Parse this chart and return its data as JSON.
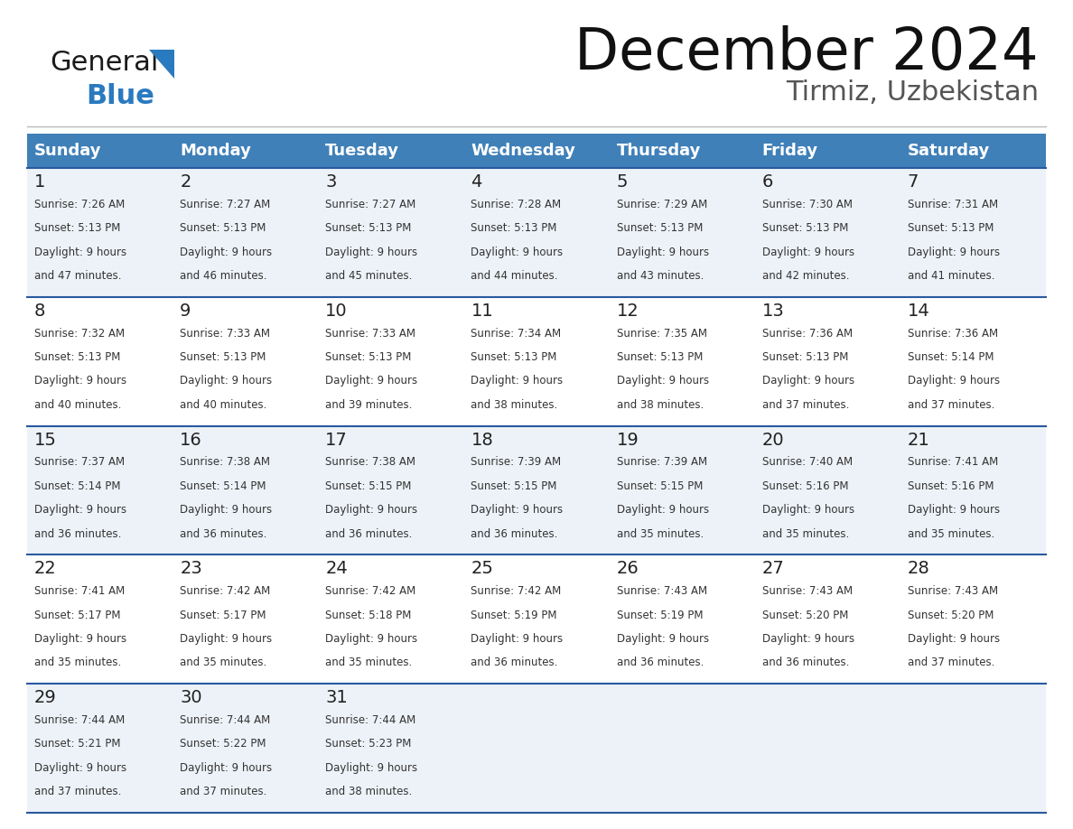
{
  "title": "December 2024",
  "subtitle": "Tirmiz, Uzbekistan",
  "header_bg": "#4080b8",
  "header_text": "#ffffff",
  "weekdays": [
    "Sunday",
    "Monday",
    "Tuesday",
    "Wednesday",
    "Thursday",
    "Friday",
    "Saturday"
  ],
  "row_bg_odd": "#edf2f8",
  "row_bg_even": "#ffffff",
  "cell_border": "#2a5a9f",
  "day_color": "#222222",
  "info_color": "#333333",
  "background": "#ffffff",
  "calendar": [
    [
      {
        "day": "1",
        "sunrise": "7:26 AM",
        "sunset": "5:13 PM",
        "daylight_h": "9 hours",
        "daylight_m": "and 47 minutes."
      },
      {
        "day": "2",
        "sunrise": "7:27 AM",
        "sunset": "5:13 PM",
        "daylight_h": "9 hours",
        "daylight_m": "and 46 minutes."
      },
      {
        "day": "3",
        "sunrise": "7:27 AM",
        "sunset": "5:13 PM",
        "daylight_h": "9 hours",
        "daylight_m": "and 45 minutes."
      },
      {
        "day": "4",
        "sunrise": "7:28 AM",
        "sunset": "5:13 PM",
        "daylight_h": "9 hours",
        "daylight_m": "and 44 minutes."
      },
      {
        "day": "5",
        "sunrise": "7:29 AM",
        "sunset": "5:13 PM",
        "daylight_h": "9 hours",
        "daylight_m": "and 43 minutes."
      },
      {
        "day": "6",
        "sunrise": "7:30 AM",
        "sunset": "5:13 PM",
        "daylight_h": "9 hours",
        "daylight_m": "and 42 minutes."
      },
      {
        "day": "7",
        "sunrise": "7:31 AM",
        "sunset": "5:13 PM",
        "daylight_h": "9 hours",
        "daylight_m": "and 41 minutes."
      }
    ],
    [
      {
        "day": "8",
        "sunrise": "7:32 AM",
        "sunset": "5:13 PM",
        "daylight_h": "9 hours",
        "daylight_m": "and 40 minutes."
      },
      {
        "day": "9",
        "sunrise": "7:33 AM",
        "sunset": "5:13 PM",
        "daylight_h": "9 hours",
        "daylight_m": "and 40 minutes."
      },
      {
        "day": "10",
        "sunrise": "7:33 AM",
        "sunset": "5:13 PM",
        "daylight_h": "9 hours",
        "daylight_m": "and 39 minutes."
      },
      {
        "day": "11",
        "sunrise": "7:34 AM",
        "sunset": "5:13 PM",
        "daylight_h": "9 hours",
        "daylight_m": "and 38 minutes."
      },
      {
        "day": "12",
        "sunrise": "7:35 AM",
        "sunset": "5:13 PM",
        "daylight_h": "9 hours",
        "daylight_m": "and 38 minutes."
      },
      {
        "day": "13",
        "sunrise": "7:36 AM",
        "sunset": "5:13 PM",
        "daylight_h": "9 hours",
        "daylight_m": "and 37 minutes."
      },
      {
        "day": "14",
        "sunrise": "7:36 AM",
        "sunset": "5:14 PM",
        "daylight_h": "9 hours",
        "daylight_m": "and 37 minutes."
      }
    ],
    [
      {
        "day": "15",
        "sunrise": "7:37 AM",
        "sunset": "5:14 PM",
        "daylight_h": "9 hours",
        "daylight_m": "and 36 minutes."
      },
      {
        "day": "16",
        "sunrise": "7:38 AM",
        "sunset": "5:14 PM",
        "daylight_h": "9 hours",
        "daylight_m": "and 36 minutes."
      },
      {
        "day": "17",
        "sunrise": "7:38 AM",
        "sunset": "5:15 PM",
        "daylight_h": "9 hours",
        "daylight_m": "and 36 minutes."
      },
      {
        "day": "18",
        "sunrise": "7:39 AM",
        "sunset": "5:15 PM",
        "daylight_h": "9 hours",
        "daylight_m": "and 36 minutes."
      },
      {
        "day": "19",
        "sunrise": "7:39 AM",
        "sunset": "5:15 PM",
        "daylight_h": "9 hours",
        "daylight_m": "and 35 minutes."
      },
      {
        "day": "20",
        "sunrise": "7:40 AM",
        "sunset": "5:16 PM",
        "daylight_h": "9 hours",
        "daylight_m": "and 35 minutes."
      },
      {
        "day": "21",
        "sunrise": "7:41 AM",
        "sunset": "5:16 PM",
        "daylight_h": "9 hours",
        "daylight_m": "and 35 minutes."
      }
    ],
    [
      {
        "day": "22",
        "sunrise": "7:41 AM",
        "sunset": "5:17 PM",
        "daylight_h": "9 hours",
        "daylight_m": "and 35 minutes."
      },
      {
        "day": "23",
        "sunrise": "7:42 AM",
        "sunset": "5:17 PM",
        "daylight_h": "9 hours",
        "daylight_m": "and 35 minutes."
      },
      {
        "day": "24",
        "sunrise": "7:42 AM",
        "sunset": "5:18 PM",
        "daylight_h": "9 hours",
        "daylight_m": "and 35 minutes."
      },
      {
        "day": "25",
        "sunrise": "7:42 AM",
        "sunset": "5:19 PM",
        "daylight_h": "9 hours",
        "daylight_m": "and 36 minutes."
      },
      {
        "day": "26",
        "sunrise": "7:43 AM",
        "sunset": "5:19 PM",
        "daylight_h": "9 hours",
        "daylight_m": "and 36 minutes."
      },
      {
        "day": "27",
        "sunrise": "7:43 AM",
        "sunset": "5:20 PM",
        "daylight_h": "9 hours",
        "daylight_m": "and 36 minutes."
      },
      {
        "day": "28",
        "sunrise": "7:43 AM",
        "sunset": "5:20 PM",
        "daylight_h": "9 hours",
        "daylight_m": "and 37 minutes."
      }
    ],
    [
      {
        "day": "29",
        "sunrise": "7:44 AM",
        "sunset": "5:21 PM",
        "daylight_h": "9 hours",
        "daylight_m": "and 37 minutes."
      },
      {
        "day": "30",
        "sunrise": "7:44 AM",
        "sunset": "5:22 PM",
        "daylight_h": "9 hours",
        "daylight_m": "and 37 minutes."
      },
      {
        "day": "31",
        "sunrise": "7:44 AM",
        "sunset": "5:23 PM",
        "daylight_h": "9 hours",
        "daylight_m": "and 38 minutes."
      },
      null,
      null,
      null,
      null
    ]
  ],
  "logo_text_general": "General",
  "logo_text_blue": "Blue",
  "logo_black_color": "#1a1a1a",
  "logo_blue_color": "#2a7abf"
}
